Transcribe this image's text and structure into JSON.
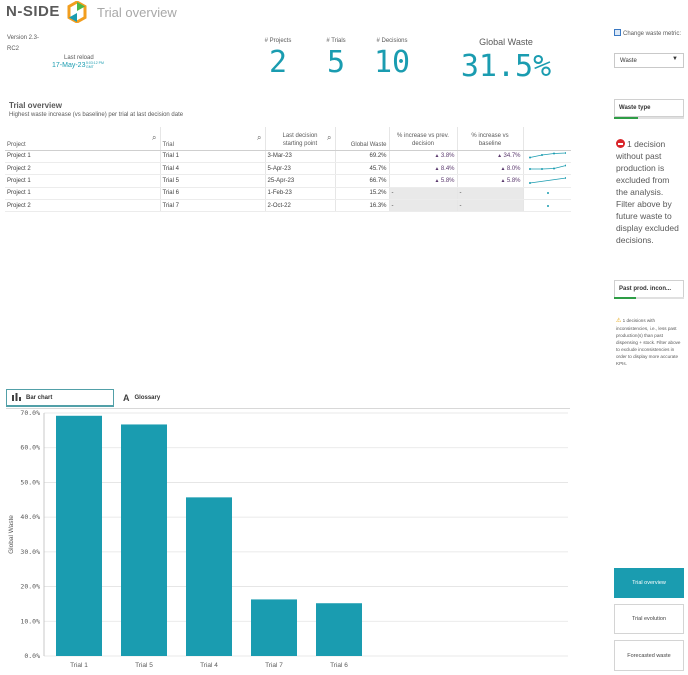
{
  "header": {
    "brand": "N-SIDE",
    "title": "Trial overview"
  },
  "meta": {
    "version": "Version 2.3-RC2",
    "reload_label": "Last reload",
    "reload_date": "17-May-23",
    "reload_time": "5:03:12 PM",
    "reload_time_line2": "GMT"
  },
  "kpis": {
    "projects": {
      "label": "# Projects",
      "value": "2"
    },
    "trials": {
      "label": "# Trials",
      "value": "5"
    },
    "decisions": {
      "label": "# Decisions",
      "value": "10"
    },
    "waste": {
      "label": "Global Waste",
      "value": "31.5%"
    }
  },
  "side_panel": {
    "change_metric_label": "Change waste metric:",
    "metric_value": "Waste",
    "waste_type_label": "Waste type",
    "excluded_message": "1 decision without past production is excluded from the analysis. Filter above by future waste to display excluded decisions.",
    "past_prod_label": "Past prod. incon...",
    "inconsistency_message": "1 decisions with inconsistencies, i.e., less past production(s) than past dispensing + stock. Filter above to exclude inconsistencies in order to display more accurate KPIs.",
    "nav_buttons": [
      "Trial overview",
      "Trial evolution",
      "Forecasted waste"
    ],
    "colors": {
      "accent": "#1a9cb0",
      "filter_green": "#2e9d46",
      "delta_purple": "#5b3a6e"
    }
  },
  "table": {
    "title": "Trial overview",
    "subtitle": "Highest waste increase (vs baseline) per trial at last decision date",
    "headers": {
      "project": "Project",
      "trial": "Trial",
      "last_decision": "Last decision starting point",
      "global_waste": "Global Waste",
      "increase_prev": "% increase vs prev. decision",
      "increase_baseline": "% increase vs baseline"
    },
    "rows": [
      {
        "project": "Project 1",
        "trial": "Trial 1",
        "date": "3-Mar-23",
        "waste": "69.2%",
        "prev": "3.8%",
        "baseline": "34.7%",
        "spark": [
          0.35,
          0.6,
          0.75,
          0.8
        ]
      },
      {
        "project": "Project 2",
        "trial": "Trial 4",
        "date": "5-Apr-23",
        "waste": "45.7%",
        "prev": "8.4%",
        "baseline": "8.0%",
        "spark": [
          0.5,
          0.5,
          0.55,
          0.85
        ]
      },
      {
        "project": "Project 1",
        "trial": "Trial 5",
        "date": "25-Apr-23",
        "waste": "66.7%",
        "prev": "5.8%",
        "baseline": "5.8%",
        "spark": [
          0.3,
          0.8
        ]
      },
      {
        "project": "Project 1",
        "trial": "Trial 6",
        "date": "1-Feb-23",
        "waste": "15.2%",
        "prev": "-",
        "baseline": "-",
        "spark": [
          0.5
        ]
      },
      {
        "project": "Project 2",
        "trial": "Trial 7",
        "date": "2-Oct-22",
        "waste": "16.3%",
        "prev": "-",
        "baseline": "-",
        "spark": [
          0.5
        ]
      }
    ]
  },
  "tabs": {
    "bar_chart": "Bar chart",
    "glossary": "Glossary"
  },
  "chart_data": {
    "type": "bar",
    "categories": [
      "Trial 1",
      "Trial 5",
      "Trial 4",
      "Trial 7",
      "Trial 6"
    ],
    "values": [
      69.2,
      66.7,
      45.7,
      16.3,
      15.2
    ],
    "ylabel": "Global Waste",
    "xlabel": "",
    "ylim": [
      0,
      70
    ],
    "yticks": [
      "0.0%",
      "10.0%",
      "20.0%",
      "30.0%",
      "40.0%",
      "50.0%",
      "60.0%",
      "70.0%"
    ],
    "grid": true,
    "bar_color": "#1a9cb0"
  }
}
